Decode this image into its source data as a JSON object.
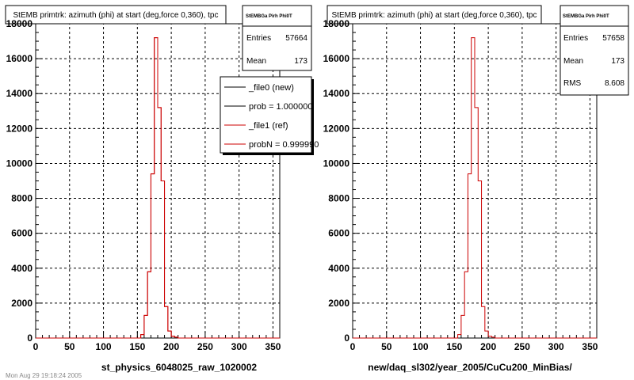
{
  "colors": {
    "new": "#000000",
    "ref": "#cc0000"
  },
  "footer": "Mon Aug 29 19:18:24 2005",
  "chart_data": [
    {
      "type": "histogram",
      "title": "StEMB primtrk: azimuth (phi) at start (deg,force 0,360), tpc",
      "xlabel": "st_physics_6048025_raw_1020002",
      "xlim": [
        0,
        360
      ],
      "ylim": [
        0,
        18000
      ],
      "xticks": [
        "0",
        "50",
        "100",
        "150",
        "200",
        "250",
        "300",
        "350"
      ],
      "yticks": [
        "0",
        "2000",
        "4000",
        "6000",
        "8000",
        "10000",
        "12000",
        "14000",
        "16000",
        "18000"
      ],
      "grid": true,
      "bin_width": 5,
      "x": [
        155,
        160,
        165,
        170,
        175,
        180,
        185,
        190,
        195,
        200,
        205
      ],
      "series": [
        {
          "name": "_file0 (new)",
          "values": [
            200,
            1300,
            3800,
            9400,
            17200,
            13200,
            9000,
            1800,
            400,
            100,
            50
          ]
        },
        {
          "name": "_file1 (ref)",
          "values": [
            200,
            1300,
            3800,
            9400,
            17200,
            13200,
            9000,
            1800,
            400,
            100,
            50
          ]
        }
      ],
      "stats": {
        "name": "StEMBGa Pirh Phi0T",
        "entries_label": "Entries",
        "entries": "57664",
        "mean_label": "Mean",
        "mean": "173"
      },
      "legend": {
        "placement": "top-right",
        "items": [
          {
            "label": "_file0 (new)",
            "color": "#000000"
          },
          {
            "label": "prob = 1.000000",
            "color": "#000000"
          },
          {
            "label": "_file1 (ref)",
            "color": "#cc0000"
          },
          {
            "label": "probN = 0.999990",
            "color": "#cc0000"
          }
        ]
      }
    },
    {
      "type": "histogram",
      "title": "StEMB primtrk: azimuth (phi) at start (deg,force 0,360), tpc",
      "xlabel": "new/daq_sl302/year_2005/CuCu200_MinBias/",
      "xlim": [
        0,
        360
      ],
      "ylim": [
        0,
        18000
      ],
      "xticks": [
        "0",
        "50",
        "100",
        "150",
        "200",
        "250",
        "300",
        "350"
      ],
      "yticks": [
        "0",
        "2000",
        "4000",
        "6000",
        "8000",
        "10000",
        "12000",
        "14000",
        "16000",
        "18000"
      ],
      "grid": true,
      "bin_width": 5,
      "x": [
        155,
        160,
        165,
        170,
        175,
        180,
        185,
        190,
        195,
        200,
        205
      ],
      "series": [
        {
          "name": "",
          "values": [
            200,
            1300,
            3800,
            9400,
            17200,
            13200,
            9000,
            1800,
            400,
            100,
            50
          ]
        }
      ],
      "stats": {
        "name": "StEMBGa Pirh Phi0T",
        "entries_label": "Entries",
        "entries": "57658",
        "mean_label": "Mean",
        "mean": "173",
        "rms_label": "RMS",
        "rms": "8.608"
      }
    }
  ]
}
